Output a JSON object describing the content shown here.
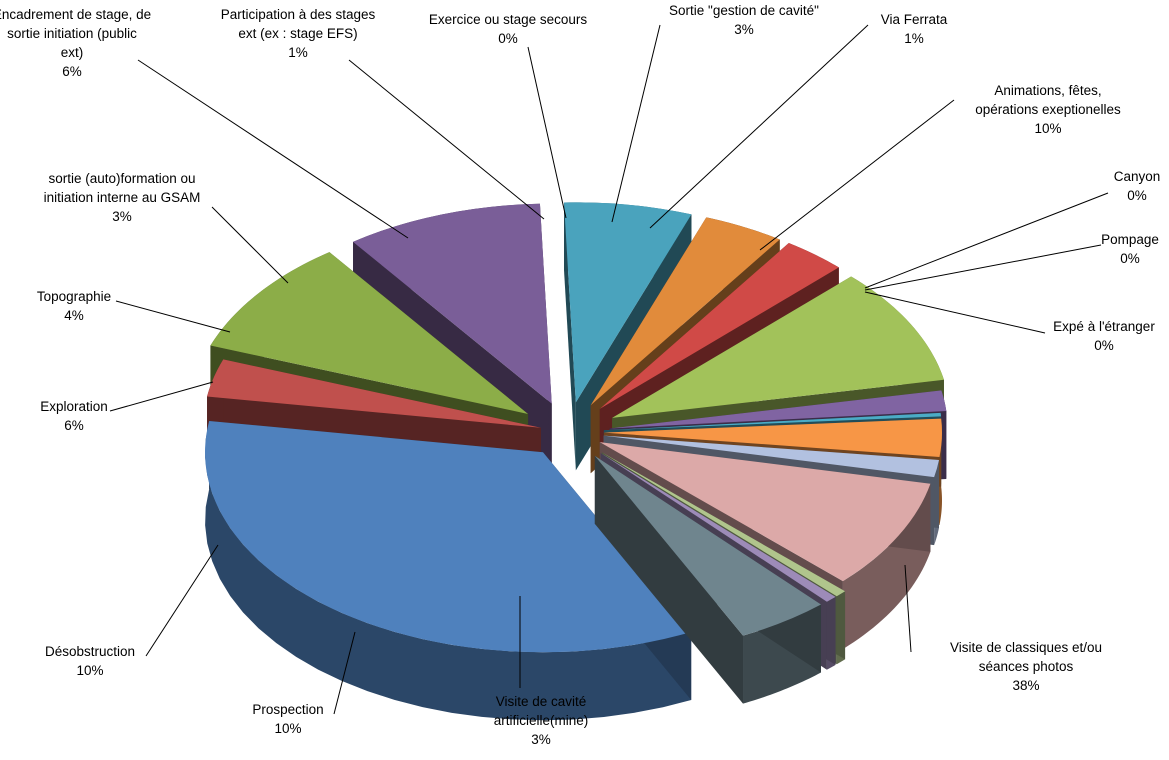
{
  "chart_data": {
    "type": "pie",
    "variant": "exploded-3d",
    "title": "",
    "legend": "none",
    "slices": [
      {
        "label": "Visite de classiques et/ou séances photos",
        "value": 38,
        "display": "38%",
        "color": "#4f81bd"
      },
      {
        "label": "Visite de cavité artificielle(mine)",
        "value": 3,
        "display": "3%",
        "color": "#c0504d"
      },
      {
        "label": "Prospection",
        "value": 10,
        "display": "10%",
        "color": "#8cad48"
      },
      {
        "label": "Désobstruction",
        "value": 10,
        "display": "10%",
        "color": "#7a5e98"
      },
      {
        "label": "Exploration",
        "value": 6,
        "display": "6%",
        "color": "#4aa3bd"
      },
      {
        "label": "Topographie",
        "value": 4,
        "display": "4%",
        "color": "#e18b3b"
      },
      {
        "label": "sortie (auto)formation ou initiation interne au GSAM",
        "value": 3,
        "display": "3%",
        "color": "#d04a47"
      },
      {
        "label": "Encadrement de stage, de sortie initiation (public ext)",
        "value": 6,
        "display": "6%",
        "color": "#a2c25a"
      },
      {
        "label": "Participation à des stages ext (ex : stage EFS)",
        "value": 1,
        "display": "1%",
        "color": "#8064a2"
      },
      {
        "label": "Exercice ou stage secours",
        "value": 0,
        "display": "0%",
        "color": "#4bacc6"
      },
      {
        "label": "Sortie \"gestion de cavité\"",
        "value": 3,
        "display": "3%",
        "color": "#f79646"
      },
      {
        "label": "Via Ferrata",
        "value": 1,
        "display": "1%",
        "color": "#b2c1e0"
      },
      {
        "label": "Animations, fêtes, opérations exeptionelles",
        "value": 10,
        "display": "10%",
        "color": "#dca9a8"
      },
      {
        "label": "Canyon",
        "value": 0,
        "display": "0%",
        "color": "#b0c58c"
      },
      {
        "label": "Pompage",
        "value": 0,
        "display": "0%",
        "color": "#9d8bb8"
      },
      {
        "label": "Expé à l'étranger",
        "value": 0,
        "display": "0%",
        "color": "#6f858e"
      }
    ]
  }
}
